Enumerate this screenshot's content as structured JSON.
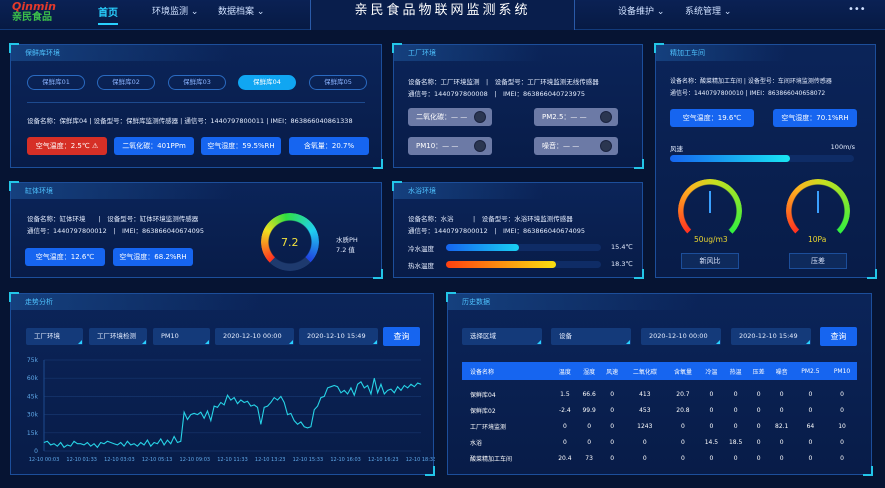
{
  "header": {
    "logo_en": "Qinmin",
    "logo_cn": "亲民食品",
    "title": "亲民食品物联网监测系统",
    "nav": [
      "首页",
      "环境监测 ⌄",
      "数据档案 ⌄",
      "设备维护 ⌄",
      "系统管理 ⌄"
    ],
    "more": "•••"
  },
  "cold": {
    "title": "保鲜库环境",
    "tabs": [
      "保鲜库01",
      "保鲜库02",
      "保鲜库03",
      "保鲜库04",
      "保鲜库05"
    ],
    "active_tab": "保鲜库04",
    "info": "设备名称：保鲜库04 | 设备型号：保鲜库监测传感器 | 通信号：1440797800011 | IMEI：863866040861338",
    "tags": [
      "空气温度：2.5℃",
      "二氧化碳：401PPm",
      "空气湿度：59.5%RH",
      "含氧量：20.7%"
    ],
    "alert_color": "#d62f26"
  },
  "factory": {
    "title": "工厂环境",
    "info1": "设备名称：工厂环境监测　|　设备型号：工厂环境监测无线传感器",
    "info2": "通信号：1440797800008　|　IMEI：863866040723975",
    "tags": [
      "二氧化碳：— —",
      "PM2.5：— —",
      "PM10：— —",
      "噪音：— —"
    ]
  },
  "workshop": {
    "title": "精加工车间",
    "info1": "设备名称：酸菜精加工车间 | 设备型号：车间环境监测传感器",
    "info2": "通信号：1440797800010 | IMEI：863866040658072",
    "tags": [
      "空气温度：19.6℃",
      "空气湿度：70.1%RH"
    ],
    "wind_label": "风速",
    "wind_max": "100m/s",
    "wind_fraction": 0.65,
    "gauges": [
      {
        "value": "50ug/m3",
        "label": "新风比",
        "ticks": [
          "0",
          "10",
          "20",
          "30",
          "40",
          "50",
          "60",
          "70",
          "80",
          "90",
          "100"
        ]
      },
      {
        "value": "10Pa",
        "label": "压差",
        "ticks": [
          "0",
          "10",
          "20",
          "30",
          "40",
          "50",
          "60",
          "70",
          "80",
          "90",
          "100"
        ]
      }
    ]
  },
  "tank": {
    "title": "缸体环境",
    "info1": "设备名称：缸体环境　　|　设备型号：缸体环境监测传感器",
    "info2": "通信号：1440797800012　|　IMEI：863866040674095",
    "tags": [
      "空气温度：12.6℃",
      "空气湿度：68.2%RH"
    ],
    "ph_value": "7.2",
    "ph_label": "水质PH",
    "ph_text": "7.2 值"
  },
  "bath": {
    "title": "水浴环境",
    "info1": "设备名称：水浴　　　|　设备型号：水浴环境监测传感器",
    "info2": "通信号：1440797800012　|　IMEI：863866040674095",
    "rows": [
      {
        "label": "冷水温度",
        "value": "15.4℃",
        "fraction": 0.47
      },
      {
        "label": "热水温度",
        "value": "18.3℃",
        "fraction": 0.71
      }
    ]
  },
  "trend": {
    "title": "走势分析",
    "filters": [
      "工厂环境",
      "工厂环境检测",
      "PM10",
      "2020-12-10 00:00",
      "2020-12-10 15:49"
    ],
    "query": "查询"
  },
  "chart_data": {
    "type": "line",
    "title": "",
    "xlabel": "",
    "ylabel": "",
    "ylim": [
      0,
      75000
    ],
    "yticks": [
      "0",
      "15k",
      "30k",
      "45k",
      "60k",
      "75k"
    ],
    "xticks": [
      "12-10 00:03",
      "12-10 01:33",
      "12-10 03:03",
      "12-10 05:13",
      "12-10 09:03",
      "12-10 11:33",
      "12-10 13:23",
      "12-10 15:33",
      "12-10 16:03",
      "12-10 16:23",
      "12-10 18:33"
    ],
    "grid": true,
    "color": "#27d3e6",
    "values": [
      7,
      8,
      5,
      6,
      4,
      7,
      3,
      5,
      4,
      8,
      6,
      6,
      5,
      7,
      4,
      6,
      3,
      7,
      6,
      8,
      7,
      6,
      5,
      7,
      4,
      8,
      5,
      6,
      4,
      7,
      5,
      9,
      4,
      7,
      6,
      10,
      5,
      9,
      6,
      12,
      7,
      8,
      32,
      26,
      30,
      31,
      30,
      32,
      27,
      33,
      25,
      37,
      36,
      40,
      38,
      46,
      42,
      44,
      39,
      42,
      40,
      41,
      37,
      38,
      36,
      22,
      36,
      37,
      40,
      44,
      42,
      45,
      40,
      30,
      31,
      25,
      22,
      24,
      20,
      19,
      20,
      34,
      37,
      44,
      45,
      52,
      53,
      54,
      53,
      48,
      50,
      47,
      52,
      46,
      55,
      57,
      52,
      54,
      47,
      60,
      48,
      55,
      47,
      50,
      51,
      48,
      53,
      50,
      54,
      52,
      55,
      53,
      56,
      55
    ],
    "value_unit": "thousand"
  },
  "history": {
    "title": "历史数据",
    "filters": [
      "选择区域",
      "设备",
      "2020-12-10 00:00",
      "2020-12-10 15:49"
    ],
    "query": "查询",
    "columns": [
      "设备名称",
      "温度",
      "湿度",
      "风速",
      "二氧化碳",
      "含氧量",
      "冷温",
      "热温",
      "压差",
      "噪音",
      "PM2.5",
      "PM10"
    ],
    "rows": [
      [
        "保鲜库04",
        "1.5",
        "66.6",
        "0",
        "413",
        "20.7",
        "0",
        "0",
        "0",
        "0",
        "0",
        "0"
      ],
      [
        "保鲜库02",
        "-2.4",
        "99.9",
        "0",
        "453",
        "20.8",
        "0",
        "0",
        "0",
        "0",
        "0",
        "0"
      ],
      [
        "工厂环境监测",
        "0",
        "0",
        "0",
        "1243",
        "0",
        "0",
        "0",
        "0",
        "82.1",
        "64",
        "10"
      ],
      [
        "水浴",
        "0",
        "0",
        "0",
        "0",
        "0",
        "14.5",
        "18.5",
        "0",
        "0",
        "0",
        "0"
      ],
      [
        "酸菜精加工车间",
        "20.4",
        "73",
        "0",
        "0",
        "0",
        "0",
        "0",
        "0",
        "0",
        "0",
        "0"
      ]
    ]
  }
}
